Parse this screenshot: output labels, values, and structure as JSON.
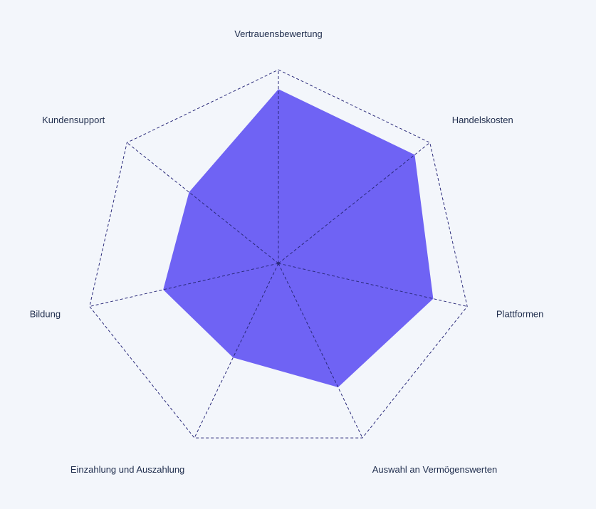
{
  "chart_data": {
    "type": "radar",
    "categories": [
      "Vertrauensbewertung",
      "Handelskosten",
      "Plattformen",
      "Auswahl an Vermögenswerten",
      "Einzahlung und Auszahlung",
      "Bildung",
      "Kundensupport"
    ],
    "series": [
      {
        "values": [
          9,
          9,
          8.2,
          7.1,
          5.4,
          6.1,
          5.9
        ]
      }
    ],
    "range": [
      0,
      10
    ],
    "grid": "dashed polygon outline at maximum and dashed spokes",
    "colors": {
      "fill": "#6f63f4",
      "grid": "#2a2a7a",
      "label": "#1f2d4d",
      "background": "#f3f6fb"
    }
  }
}
